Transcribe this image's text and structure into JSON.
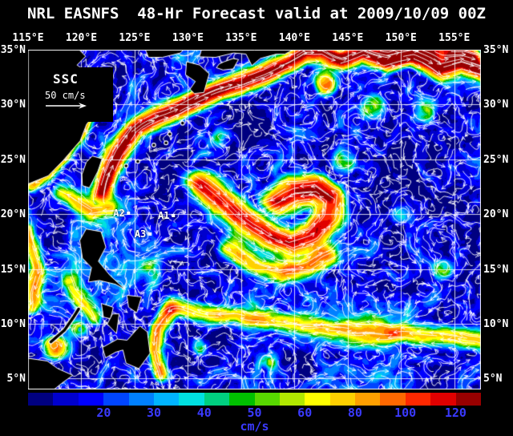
{
  "title": "NRL EASNFS  48-Hr Forecast valid at 2009/10/09 00Z",
  "axes": {
    "lon_ticks": [
      "115°E",
      "120°E",
      "125°E",
      "130°E",
      "135°E",
      "140°E",
      "145°E",
      "150°E",
      "155°E"
    ],
    "lat_ticks_left": [
      "35°N",
      "30°N",
      "25°N",
      "20°N",
      "15°N",
      "10°N",
      "5°N"
    ],
    "lat_ticks_right": [
      "35°N",
      "30°N",
      "25°N",
      "20°N",
      "15°N",
      "10°N",
      "5°N"
    ]
  },
  "legend": {
    "title": "SSC",
    "scale_label": "50 cm/s"
  },
  "stations": [
    {
      "label": "A1",
      "lon": 128.0,
      "lat": 19.9
    },
    {
      "label": "A2",
      "lon": 123.8,
      "lat": 20.1
    },
    {
      "label": "A3",
      "lon": 125.8,
      "lat": 18.2
    }
  ],
  "colorbar": {
    "units": "cm/s",
    "tick_labels": [
      "20",
      "30",
      "40",
      "50",
      "60",
      "80",
      "100",
      "120"
    ],
    "tick_positions": [
      0.167,
      0.278,
      0.389,
      0.5,
      0.611,
      0.722,
      0.833,
      0.944
    ],
    "label_color": "#3a3aff",
    "colors": [
      "#000080",
      "#0000cd",
      "#0000ff",
      "#0045ff",
      "#0080ff",
      "#00b4ff",
      "#00e0e0",
      "#00d080",
      "#00c000",
      "#58d800",
      "#b0e800",
      "#ffff00",
      "#ffd000",
      "#ffa000",
      "#ff6800",
      "#ff2800",
      "#e00000",
      "#980000"
    ]
  },
  "map": {
    "grid_color": "#ffffff",
    "coast_color": "#ffffff",
    "land_color": "#000000",
    "arrow_color": "#ffffff"
  }
}
